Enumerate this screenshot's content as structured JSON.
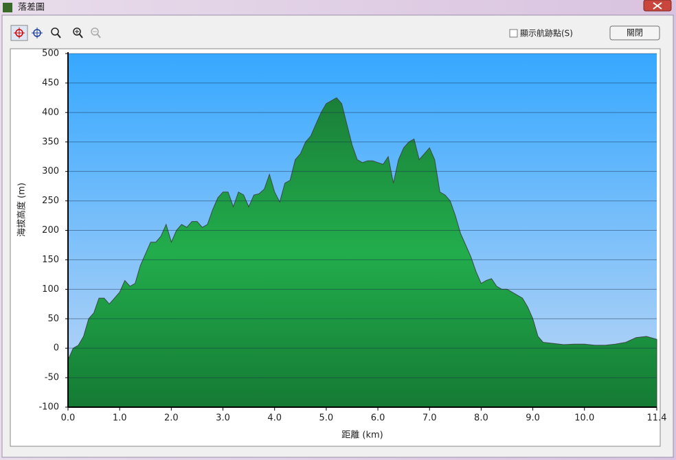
{
  "window": {
    "title": "落差圖",
    "checkbox_label": "顯示航跡點(S)",
    "close_button": "關閉"
  },
  "chart_data": {
    "type": "area",
    "x_label": "距離 (km)",
    "y_label": "海拔高度 (m)",
    "x": [
      0.0,
      0.1,
      0.2,
      0.3,
      0.4,
      0.5,
      0.6,
      0.7,
      0.8,
      0.9,
      1.0,
      1.1,
      1.2,
      1.3,
      1.4,
      1.5,
      1.6,
      1.7,
      1.8,
      1.9,
      2.0,
      2.1,
      2.2,
      2.3,
      2.4,
      2.5,
      2.6,
      2.7,
      2.8,
      2.9,
      3.0,
      3.1,
      3.2,
      3.3,
      3.4,
      3.5,
      3.6,
      3.7,
      3.8,
      3.9,
      4.0,
      4.1,
      4.2,
      4.3,
      4.4,
      4.5,
      4.6,
      4.7,
      4.8,
      4.9,
      5.0,
      5.1,
      5.2,
      5.3,
      5.4,
      5.5,
      5.6,
      5.7,
      5.8,
      5.9,
      6.0,
      6.1,
      6.2,
      6.3,
      6.4,
      6.5,
      6.6,
      6.7,
      6.8,
      6.9,
      7.0,
      7.1,
      7.2,
      7.3,
      7.4,
      7.5,
      7.6,
      7.7,
      7.8,
      7.9,
      8.0,
      8.1,
      8.2,
      8.3,
      8.4,
      8.5,
      8.6,
      8.7,
      8.8,
      8.9,
      9.0,
      9.1,
      9.2,
      9.4,
      9.6,
      9.8,
      10.0,
      10.2,
      10.4,
      10.6,
      10.8,
      11.0,
      11.2,
      11.4
    ],
    "values": [
      -20,
      0,
      5,
      20,
      50,
      60,
      85,
      85,
      75,
      85,
      95,
      115,
      105,
      110,
      140,
      160,
      180,
      180,
      190,
      210,
      180,
      200,
      210,
      205,
      215,
      215,
      205,
      210,
      235,
      255,
      265,
      265,
      240,
      265,
      260,
      240,
      260,
      262,
      270,
      295,
      265,
      248,
      280,
      285,
      320,
      330,
      350,
      360,
      380,
      400,
      415,
      420,
      425,
      415,
      380,
      345,
      320,
      315,
      318,
      318,
      315,
      312,
      325,
      280,
      320,
      340,
      350,
      355,
      320,
      330,
      340,
      320,
      265,
      260,
      250,
      225,
      195,
      175,
      155,
      130,
      110,
      115,
      118,
      105,
      100,
      100,
      95,
      90,
      85,
      70,
      50,
      20,
      10,
      8,
      6,
      7,
      7,
      5,
      5,
      7,
      10,
      18,
      20,
      15
    ],
    "color": "#1e9a44",
    "xlim": [
      0,
      11.4
    ],
    "xticks": [
      {
        "value": 0,
        "label": "0.0"
      },
      {
        "value": 1,
        "label": "1.0"
      },
      {
        "value": 2,
        "label": "2.0"
      },
      {
        "value": 3,
        "label": "3.0"
      },
      {
        "value": 4,
        "label": "4.0"
      },
      {
        "value": 5,
        "label": "5.0"
      },
      {
        "value": 6,
        "label": "6.0"
      },
      {
        "value": 7,
        "label": "7.0"
      },
      {
        "value": 8,
        "label": "8.0"
      },
      {
        "value": 9,
        "label": "9.0"
      },
      {
        "value": 10,
        "label": "10.0"
      },
      {
        "value": 11.4,
        "label": "11.4"
      }
    ],
    "ylim": [
      -100,
      500
    ],
    "yticks": [
      -100,
      -50,
      0,
      50,
      100,
      150,
      200,
      250,
      300,
      350,
      400,
      450,
      500
    ],
    "grid": true
  }
}
